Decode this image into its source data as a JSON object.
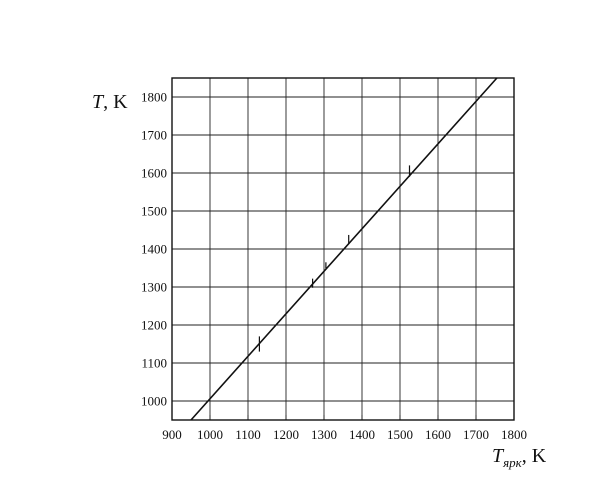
{
  "chart_data": {
    "type": "line",
    "title": "",
    "xlabel": {
      "symbol": "T",
      "subscript": "ярк",
      "unit": ", K"
    },
    "ylabel": {
      "symbol": "T",
      "unit": ", K"
    },
    "xlim": [
      900,
      1800
    ],
    "ylim": [
      950,
      1850
    ],
    "x_ticks": [
      900,
      1000,
      1100,
      1200,
      1300,
      1400,
      1500,
      1600,
      1700,
      1800
    ],
    "y_ticks": [
      1000,
      1100,
      1200,
      1300,
      1400,
      1500,
      1600,
      1700,
      1800
    ],
    "x_tick_labels": [
      "900",
      "1000",
      "1100",
      "1200",
      "1300",
      "1400",
      "1500",
      "1600",
      "1700",
      "1800"
    ],
    "y_tick_labels": [
      "1000",
      "1100",
      "1200",
      "1300",
      "1400",
      "1500",
      "1600",
      "1700",
      "1800"
    ],
    "grid": true,
    "series": [
      {
        "x": [
          950,
          1755
        ],
        "y": [
          950,
          1850
        ]
      }
    ],
    "points": [
      {
        "x": 1130,
        "y": 1150,
        "err": 20
      },
      {
        "x": 1270,
        "y": 1310,
        "err": 12
      },
      {
        "x": 1305,
        "y": 1357,
        "err": 8
      },
      {
        "x": 1365,
        "y": 1425,
        "err": 12
      },
      {
        "x": 1525,
        "y": 1605,
        "err": 15
      }
    ],
    "colors": {
      "line": "#111111",
      "grid": "#222222",
      "axis": "#111111"
    }
  }
}
